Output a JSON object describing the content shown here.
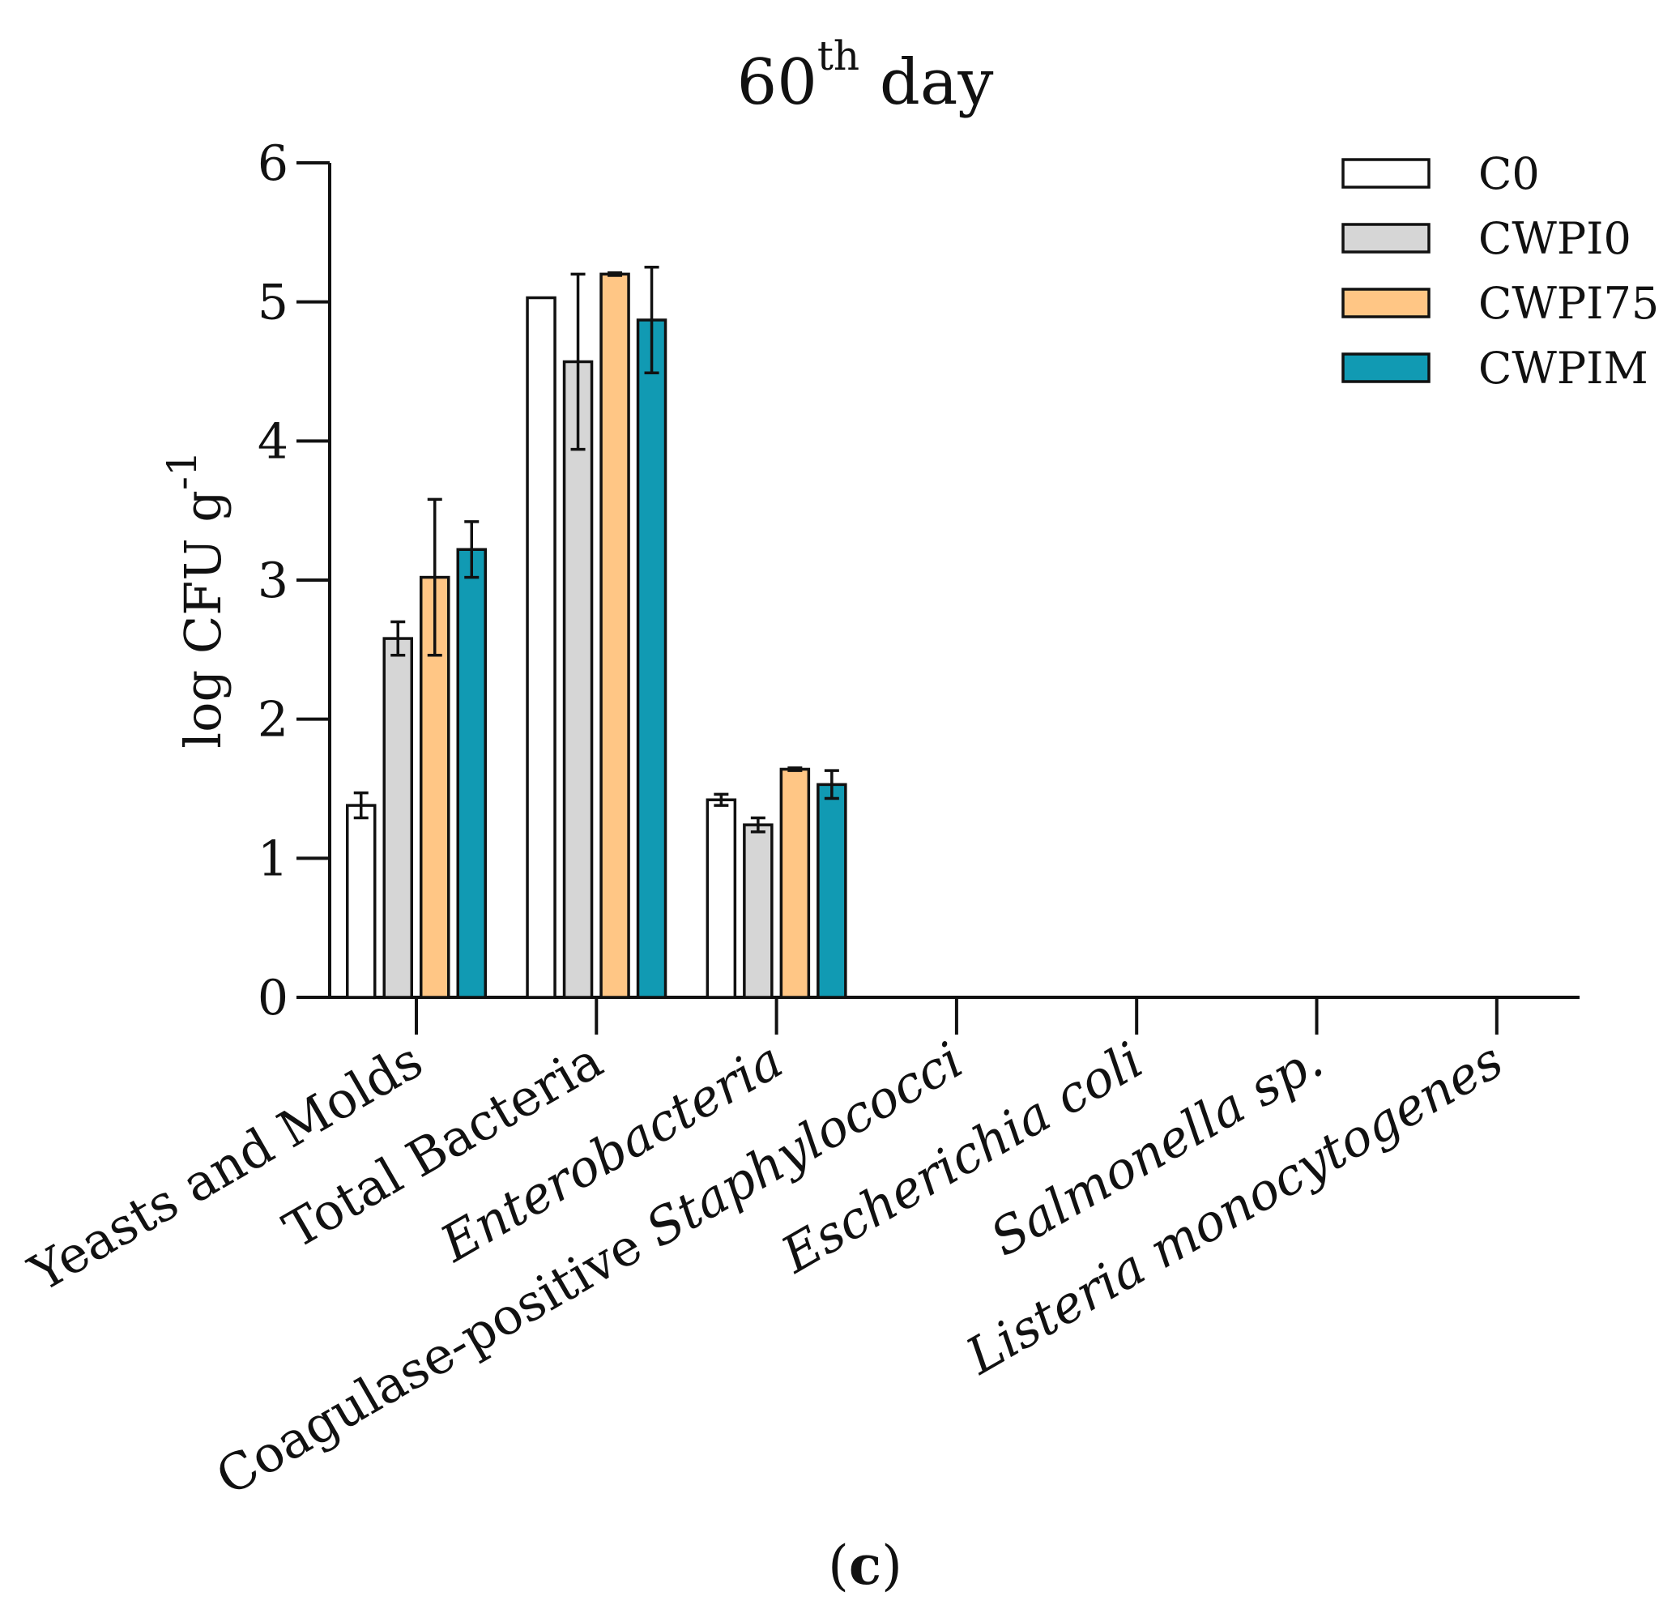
{
  "chart_data": {
    "type": "bar",
    "title_main": "60",
    "title_sup": "th",
    "title_rest": " day",
    "ylabel_main": "log CFU g",
    "ylabel_sup": "-1",
    "xlabel": "",
    "ylim": [
      0,
      6
    ],
    "yticks": [
      "0",
      "1",
      "2",
      "3",
      "4",
      "5",
      "6"
    ],
    "grid": false,
    "legend_position": "top-right",
    "categories": [
      "Yeasts and Molds",
      "Total Bacteria",
      "Enterobacteria",
      "Coagulase-positive Staphylococci",
      "Escherichia coli",
      "Salmonella sp.",
      "Listeria monocytogenes"
    ],
    "series": [
      {
        "name": "C0",
        "color": "#ffffff",
        "values": [
          1.38,
          5.03,
          1.42,
          0,
          0,
          0,
          0
        ],
        "errors": [
          0.09,
          0,
          0.04,
          0,
          0,
          0,
          0
        ]
      },
      {
        "name": "CWPI0",
        "color": "#d6d6d6",
        "values": [
          2.58,
          4.57,
          1.24,
          0,
          0,
          0,
          0
        ],
        "errors": [
          0.12,
          0.63,
          0.05,
          0,
          0,
          0,
          0
        ]
      },
      {
        "name": "CWPI75",
        "color": "#ffc685",
        "values": [
          3.02,
          5.2,
          1.64,
          0,
          0,
          0,
          0
        ],
        "errors": [
          0.56,
          0.01,
          0.01,
          0,
          0,
          0,
          0
        ]
      },
      {
        "name": "CWPIM",
        "color": "#119ab3",
        "values": [
          3.22,
          4.87,
          1.53,
          0,
          0,
          0,
          0
        ],
        "errors": [
          0.2,
          0.38,
          0.1,
          0,
          0,
          0,
          0
        ]
      }
    ],
    "panel_label": "c",
    "panel_open": "(",
    "panel_close": ")"
  }
}
